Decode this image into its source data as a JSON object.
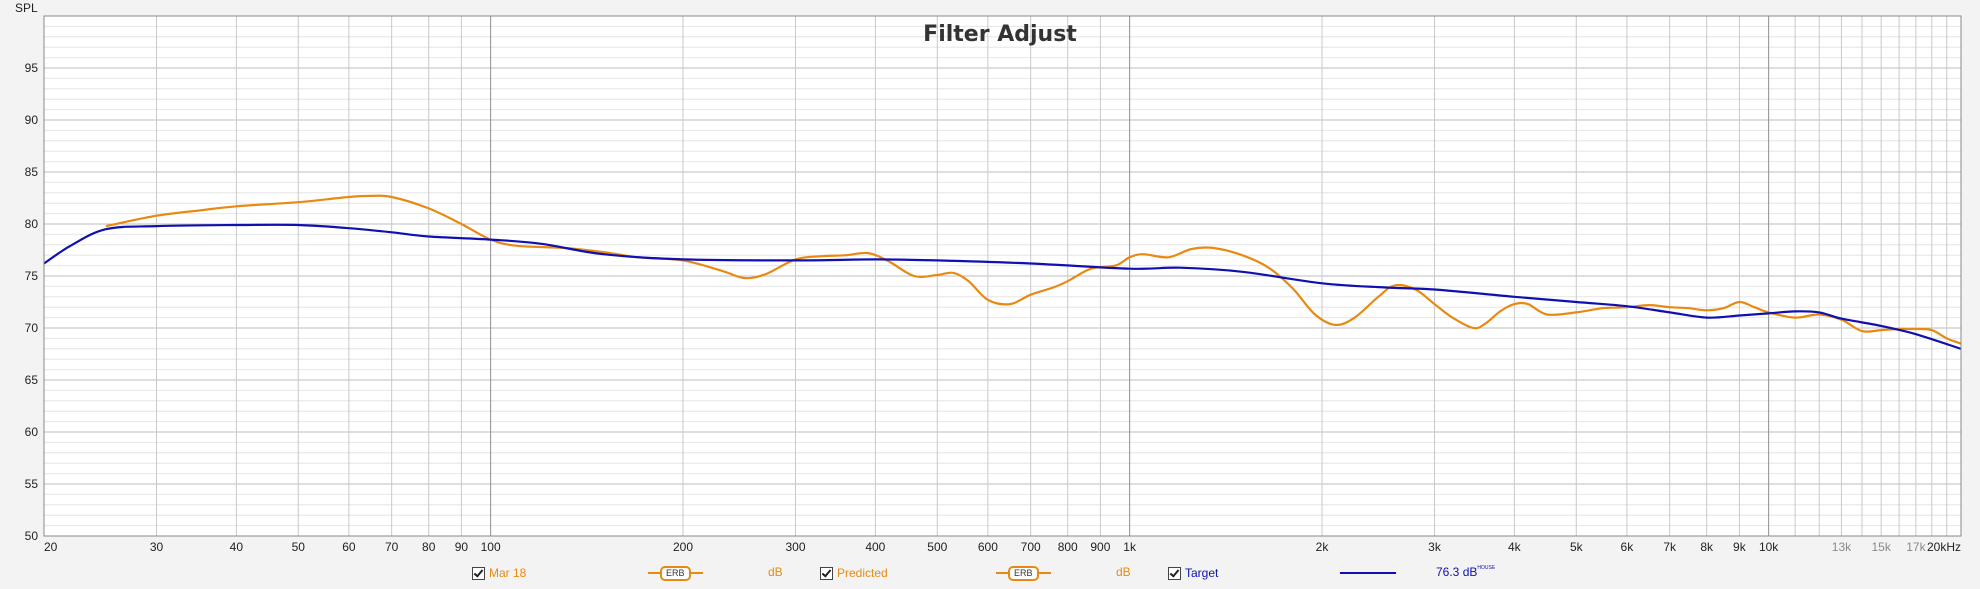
{
  "chart_data": {
    "type": "line",
    "title": "Filter Adjust",
    "ylabel": "SPL",
    "xlabel": "",
    "xscale": "log",
    "xlim": [
      20,
      20000
    ],
    "ylim": [
      50,
      100
    ],
    "grid": true,
    "y_ticks": [
      50,
      55,
      60,
      65,
      70,
      75,
      80,
      85,
      90,
      95
    ],
    "x_ticks": [
      {
        "value": 20,
        "label": "20"
      },
      {
        "value": 30,
        "label": "30"
      },
      {
        "value": 40,
        "label": "40"
      },
      {
        "value": 50,
        "label": "50"
      },
      {
        "value": 60,
        "label": "60"
      },
      {
        "value": 70,
        "label": "70"
      },
      {
        "value": 80,
        "label": "80"
      },
      {
        "value": 90,
        "label": "90"
      },
      {
        "value": 100,
        "label": "100"
      },
      {
        "value": 200,
        "label": "200"
      },
      {
        "value": 300,
        "label": "300"
      },
      {
        "value": 400,
        "label": "400"
      },
      {
        "value": 500,
        "label": "500"
      },
      {
        "value": 600,
        "label": "600"
      },
      {
        "value": 700,
        "label": "700"
      },
      {
        "value": 800,
        "label": "800"
      },
      {
        "value": 900,
        "label": "900"
      },
      {
        "value": 1000,
        "label": "1k"
      },
      {
        "value": 2000,
        "label": "2k"
      },
      {
        "value": 3000,
        "label": "3k"
      },
      {
        "value": 4000,
        "label": "4k"
      },
      {
        "value": 5000,
        "label": "5k"
      },
      {
        "value": 6000,
        "label": "6k"
      },
      {
        "value": 7000,
        "label": "7k"
      },
      {
        "value": 8000,
        "label": "8k"
      },
      {
        "value": 9000,
        "label": "9k"
      },
      {
        "value": 10000,
        "label": "10k"
      },
      {
        "value": 13000,
        "label": "13k",
        "grey": true
      },
      {
        "value": 15000,
        "label": "15k",
        "grey": true
      },
      {
        "value": 17000,
        "label": "17k",
        "grey": true
      },
      {
        "value": 20000,
        "label": "20kHz"
      }
    ],
    "series": [
      {
        "name": "Predicted",
        "color": "#e88a12",
        "points": [
          [
            25,
            79.8
          ],
          [
            30,
            80.8
          ],
          [
            35,
            81.3
          ],
          [
            40,
            81.7
          ],
          [
            50,
            82.1
          ],
          [
            60,
            82.6
          ],
          [
            65,
            82.7
          ],
          [
            70,
            82.6
          ],
          [
            80,
            81.5
          ],
          [
            90,
            80.0
          ],
          [
            100,
            78.5
          ],
          [
            110,
            77.9
          ],
          [
            130,
            77.7
          ],
          [
            150,
            77.3
          ],
          [
            170,
            76.8
          ],
          [
            200,
            76.5
          ],
          [
            230,
            75.5
          ],
          [
            250,
            74.8
          ],
          [
            270,
            75.2
          ],
          [
            300,
            76.6
          ],
          [
            330,
            76.9
          ],
          [
            360,
            77.0
          ],
          [
            390,
            77.2
          ],
          [
            420,
            76.4
          ],
          [
            460,
            75.0
          ],
          [
            500,
            75.1
          ],
          [
            530,
            75.3
          ],
          [
            560,
            74.5
          ],
          [
            600,
            72.7
          ],
          [
            650,
            72.3
          ],
          [
            700,
            73.2
          ],
          [
            760,
            73.9
          ],
          [
            800,
            74.5
          ],
          [
            870,
            75.7
          ],
          [
            950,
            76.0
          ],
          [
            1000,
            76.8
          ],
          [
            1050,
            77.1
          ],
          [
            1150,
            76.8
          ],
          [
            1250,
            77.6
          ],
          [
            1350,
            77.7
          ],
          [
            1500,
            77.0
          ],
          [
            1650,
            75.8
          ],
          [
            1800,
            73.8
          ],
          [
            1950,
            71.3
          ],
          [
            2100,
            70.3
          ],
          [
            2250,
            71.0
          ],
          [
            2450,
            73.0
          ],
          [
            2600,
            74.1
          ],
          [
            2800,
            73.7
          ],
          [
            3000,
            72.3
          ],
          [
            3200,
            71.0
          ],
          [
            3450,
            70.0
          ],
          [
            3600,
            70.4
          ],
          [
            3800,
            71.6
          ],
          [
            4000,
            72.3
          ],
          [
            4200,
            72.3
          ],
          [
            4500,
            71.3
          ],
          [
            5000,
            71.5
          ],
          [
            5500,
            71.9
          ],
          [
            6000,
            72.0
          ],
          [
            6500,
            72.2
          ],
          [
            7000,
            72.0
          ],
          [
            7500,
            71.9
          ],
          [
            8000,
            71.7
          ],
          [
            8500,
            71.9
          ],
          [
            9000,
            72.5
          ],
          [
            9500,
            72.0
          ],
          [
            10000,
            71.5
          ],
          [
            11000,
            71.0
          ],
          [
            12000,
            71.3
          ],
          [
            13000,
            70.8
          ],
          [
            14000,
            69.7
          ],
          [
            15000,
            69.8
          ],
          [
            16000,
            69.9
          ],
          [
            17000,
            69.9
          ],
          [
            18000,
            69.8
          ],
          [
            19000,
            69.0
          ],
          [
            20000,
            68.5
          ]
        ]
      },
      {
        "name": "Target",
        "color": "#1010b0",
        "points": [
          [
            20,
            76.2
          ],
          [
            22,
            77.9
          ],
          [
            25,
            79.5
          ],
          [
            30,
            79.8
          ],
          [
            40,
            79.9
          ],
          [
            50,
            79.9
          ],
          [
            60,
            79.6
          ],
          [
            70,
            79.2
          ],
          [
            80,
            78.8
          ],
          [
            100,
            78.5
          ],
          [
            120,
            78.1
          ],
          [
            150,
            77.1
          ],
          [
            200,
            76.6
          ],
          [
            300,
            76.5
          ],
          [
            400,
            76.6
          ],
          [
            500,
            76.5
          ],
          [
            700,
            76.2
          ],
          [
            1000,
            75.7
          ],
          [
            1200,
            75.8
          ],
          [
            1500,
            75.4
          ],
          [
            2000,
            74.3
          ],
          [
            2500,
            73.9
          ],
          [
            3000,
            73.7
          ],
          [
            4000,
            73.0
          ],
          [
            5000,
            72.5
          ],
          [
            6000,
            72.1
          ],
          [
            7000,
            71.5
          ],
          [
            8000,
            71.0
          ],
          [
            9000,
            71.2
          ],
          [
            10000,
            71.4
          ],
          [
            11000,
            71.6
          ],
          [
            12000,
            71.5
          ],
          [
            13000,
            70.9
          ],
          [
            15000,
            70.2
          ],
          [
            17000,
            69.4
          ],
          [
            20000,
            68.0
          ]
        ]
      }
    ]
  },
  "legend": {
    "item1_label": "Mar 18",
    "item1_smoothing": "ERB",
    "item1_unit": "dB",
    "item2_label": "Predicted",
    "item2_smoothing": "ERB",
    "item2_unit": "dB",
    "item3_label": "Target",
    "item3_value": "76.3 dB",
    "item3_sup": "HOUSE",
    "color_orange": "#e88a12",
    "color_blue": "#1010b0"
  }
}
